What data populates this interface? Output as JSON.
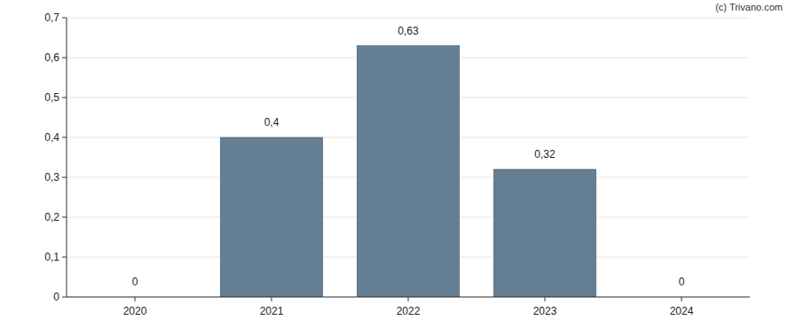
{
  "chart_data": {
    "type": "bar",
    "categories": [
      "2020",
      "2021",
      "2022",
      "2023",
      "2024"
    ],
    "values": [
      0,
      0.4,
      0.63,
      0.32,
      0
    ],
    "value_labels": [
      "0",
      "0,4",
      "0,63",
      "0,32",
      "0"
    ],
    "data_labels": true,
    "color": "#647f93",
    "ylim": [
      0,
      0.7
    ],
    "yticks": [
      0,
      {
        "value": 0.1,
        "label": "0,1"
      },
      {
        "value": 0.2,
        "label": "0,2"
      },
      {
        "value": 0.3,
        "label": "0,3"
      },
      {
        "value": 0.4,
        "label": "0,4"
      },
      {
        "value": 0.5,
        "label": "0,5"
      },
      {
        "value": 0.6,
        "label": "0,6"
      },
      {
        "value": 0.7,
        "label": "0,7"
      }
    ],
    "grid": true,
    "annotations": [
      "(c) Trivano.com"
    ]
  }
}
